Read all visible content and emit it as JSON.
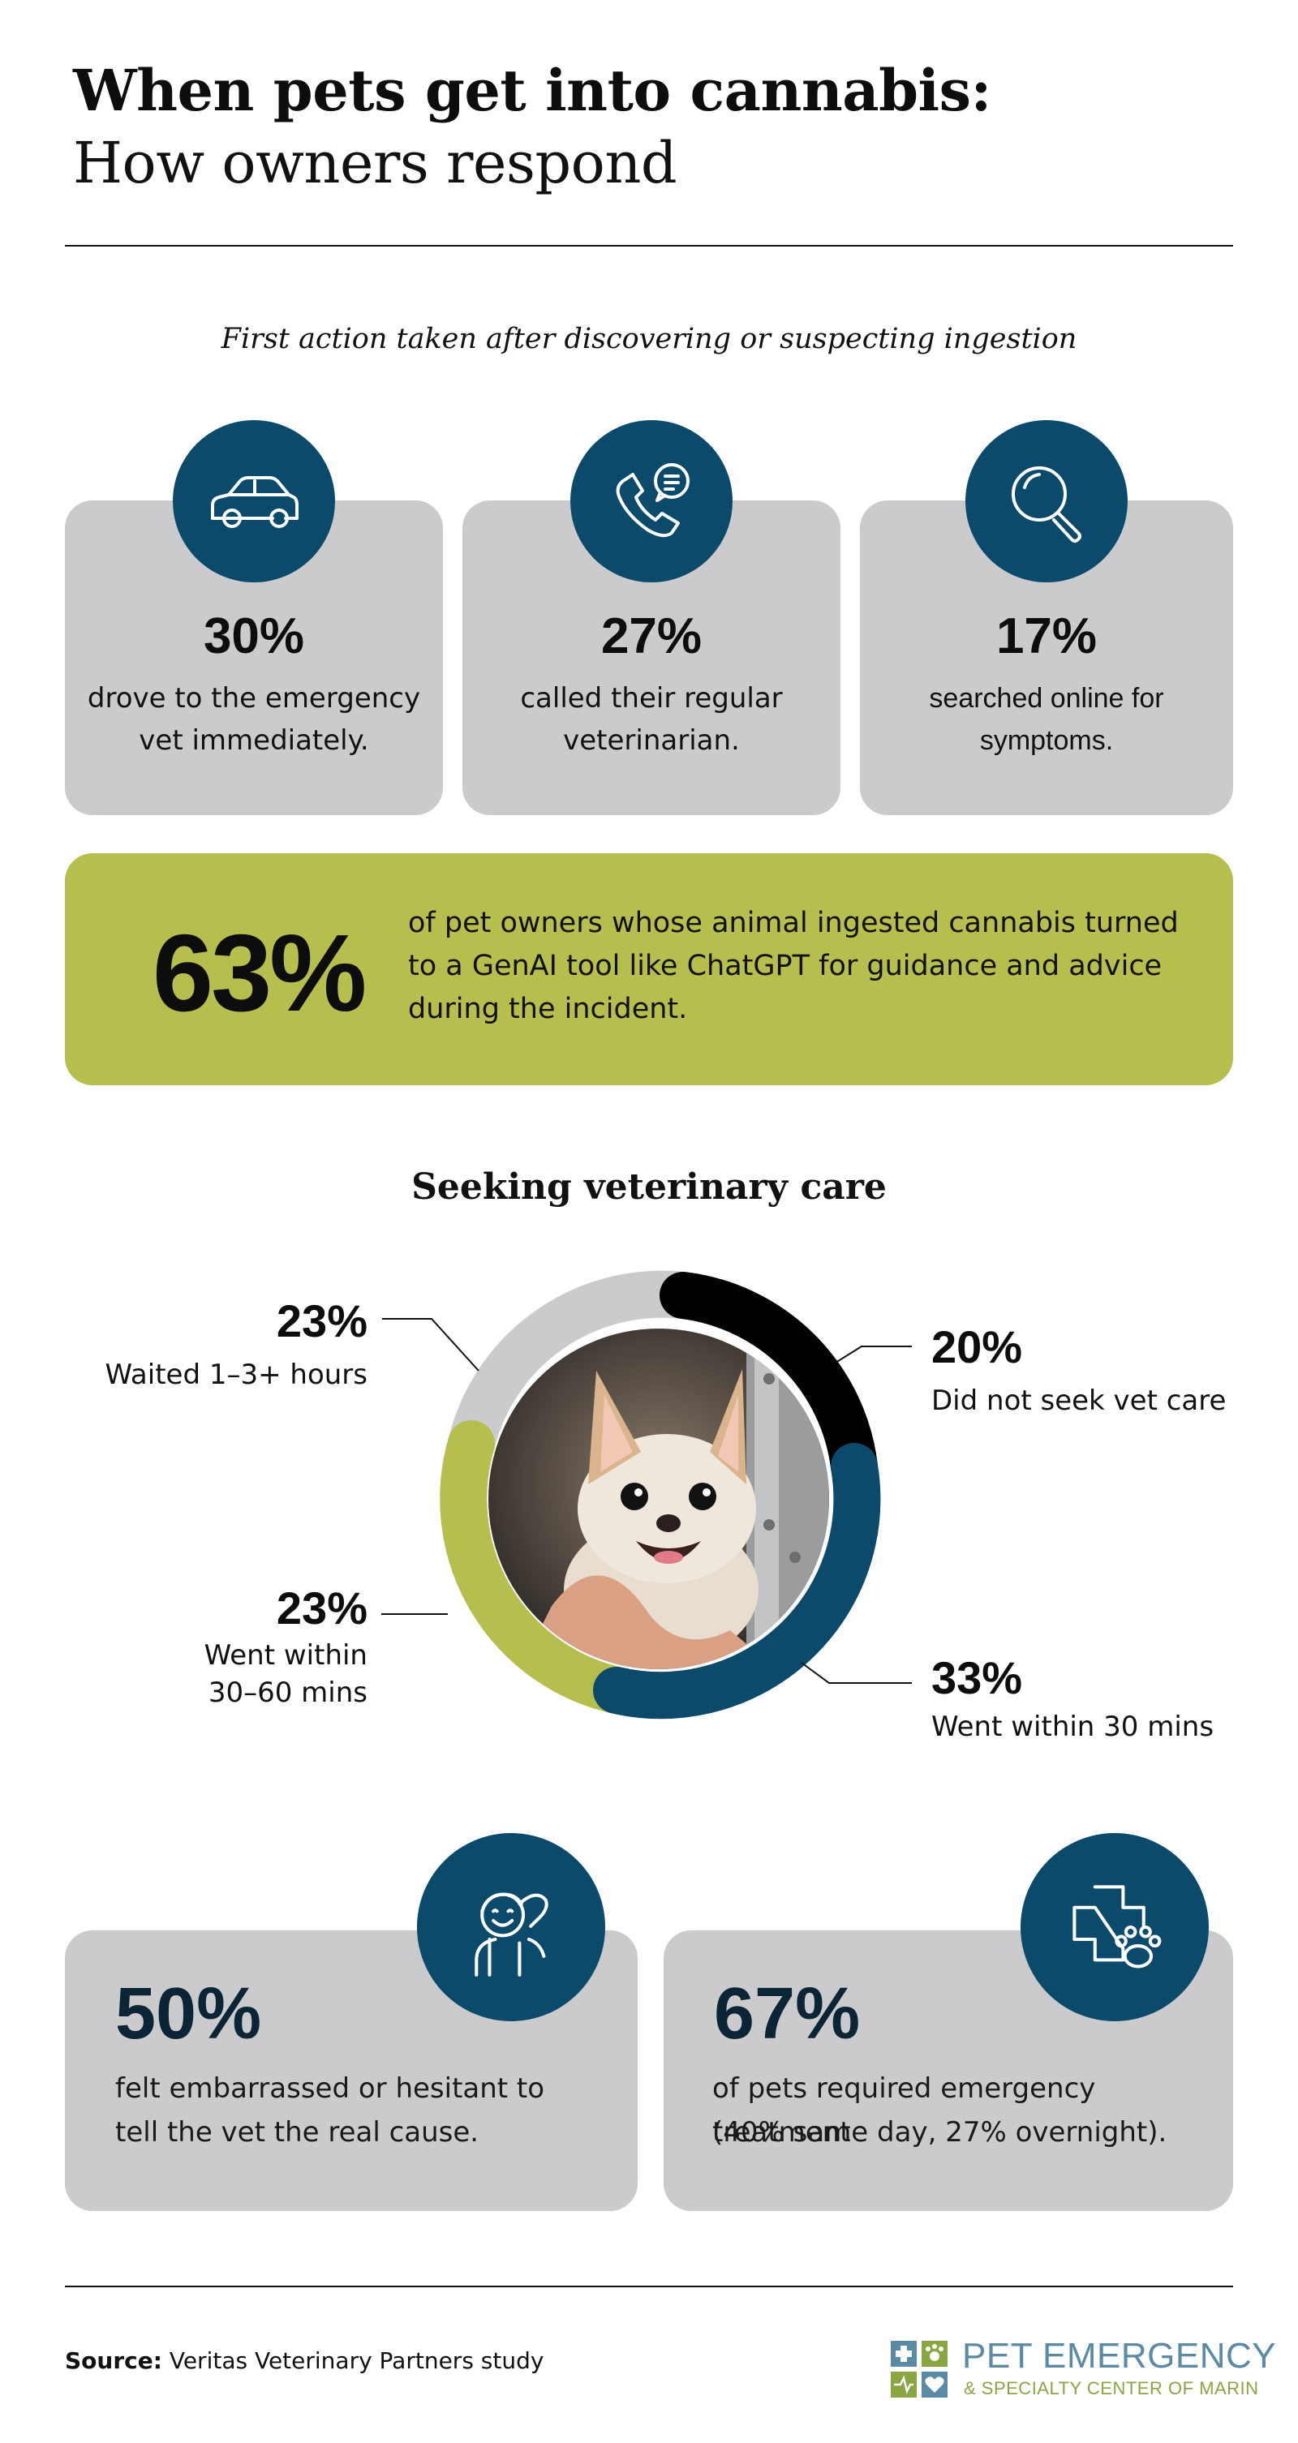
{
  "header": {
    "title_line1": "When pets get into cannabis:",
    "title_line2": "How owners respond"
  },
  "first_action": {
    "subtitle": "First action taken after discovering or suspecting ingestion",
    "cards": [
      {
        "icon": "car-icon",
        "percent": "30%",
        "line1": "drove to the emergency",
        "line2": "vet immediately."
      },
      {
        "icon": "phone-chat-icon",
        "percent": "27%",
        "line1": "called their regular",
        "line2": "veterinarian."
      },
      {
        "icon": "magnifier-icon",
        "percent": "17%",
        "line1": "searched online for",
        "line2": "symptoms."
      }
    ]
  },
  "highlight": {
    "percent": "63%",
    "line1": "of pet owners whose animal ingested cannabis turned",
    "line2": "to a GenAI tool like ChatGPT for guidance and advice",
    "line3": "during the incident.",
    "color": "#b6be4e"
  },
  "vet_care": {
    "title": "Seeking veterinary care",
    "segments": [
      {
        "percent": "20%",
        "label": "Did not seek vet care",
        "color": "#000000"
      },
      {
        "percent": "33%",
        "label": "Went within 30 mins",
        "color": "#0b4a6a"
      },
      {
        "percent": "23%",
        "label_line1": "Went within",
        "label_line2": "30–60 mins",
        "color": "#b6be4e"
      },
      {
        "percent": "23%",
        "label": "Waited 1–3+ hours",
        "color": "#cbcbcd"
      }
    ],
    "photo": "chihuahua-photo"
  },
  "bottom_cards": [
    {
      "icon": "embarrassed-person-icon",
      "percent": "50%",
      "line1": "felt embarrassed or hesitant to",
      "line2": "tell the vet the real cause."
    },
    {
      "icon": "medical-cross-paw-icon",
      "percent": "67%",
      "line1": "of pets required emergency treatment",
      "line2": "(40% same day, 27% overnight)."
    }
  ],
  "footer": {
    "source_label": "Source:",
    "source_text": "Veritas Veterinary Partners study",
    "logo_line1": "PET EMERGENCY",
    "logo_line2": "& SPECIALTY CENTER OF MARIN"
  },
  "colors": {
    "navy": "#0b4a6a",
    "gray_card": "#cbcbcd",
    "green": "#b6be4e"
  }
}
